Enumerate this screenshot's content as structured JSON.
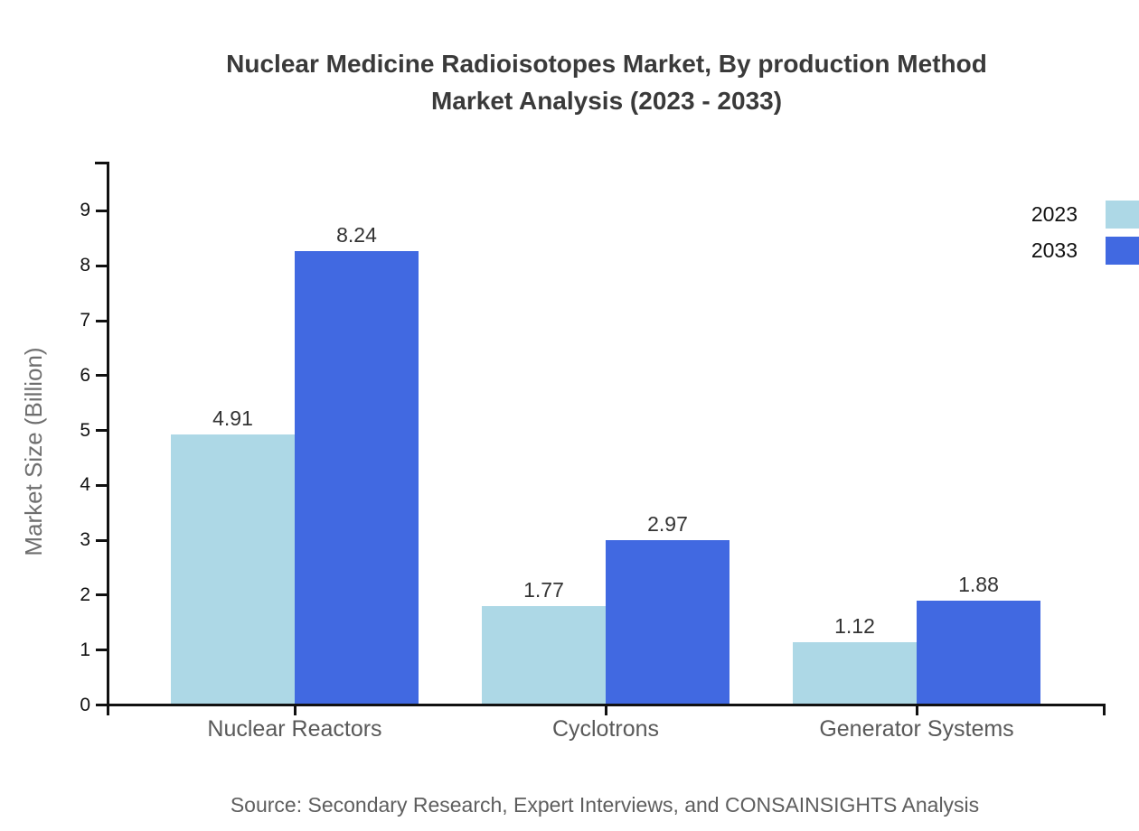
{
  "header": {
    "title_line1": "Nuclear Medicine Radioisotopes Market, By production Method",
    "title_line2": "Market Analysis (2023 - 2033)"
  },
  "footer": {
    "source": "Source: Secondary Research, Expert Interviews, and CONSAINSIGHTS Analysis"
  },
  "chart_data": {
    "type": "bar",
    "title": "Nuclear Medicine Radioisotopes Market, By production Method Market Analysis (2023 - 2033)",
    "categories": [
      "Nuclear Reactors",
      "Cyclotrons",
      "Generator Systems"
    ],
    "series": [
      {
        "name": "2023",
        "color": "#ADD8E6",
        "values": [
          4.91,
          1.77,
          1.12
        ]
      },
      {
        "name": "2033",
        "color": "#4169E1",
        "values": [
          8.24,
          2.97,
          1.88
        ]
      }
    ],
    "xlabel": "",
    "ylabel": "Market Size (Billion)",
    "yticks": [
      0,
      1,
      2,
      3,
      4,
      5,
      6,
      7,
      8,
      9
    ],
    "ylim": [
      0,
      9.9
    ],
    "grid": false,
    "legend_position": "top-right",
    "value_labels": {
      "Nuclear Reactors": {
        "2023": "4.91",
        "2033": "8.24"
      },
      "Cyclotrons": {
        "2023": "1.77",
        "2033": "2.97"
      },
      "Generator Systems": {
        "2023": "1.12",
        "2033": "1.88"
      }
    }
  },
  "colors": {
    "series_2023": "#ADD8E6",
    "series_2033": "#4169E1",
    "axis": "#111111",
    "title_text": "#3a3a3a",
    "category_text": "#595959",
    "ylabel_text": "#6e6e6e",
    "value_text": "#333333",
    "source_text": "#5e5e5e"
  }
}
